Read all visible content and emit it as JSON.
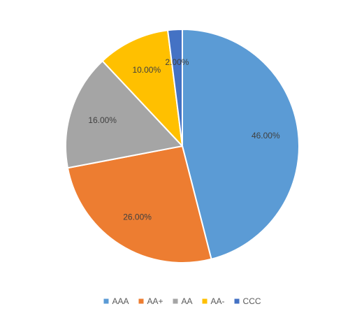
{
  "chart_data": {
    "type": "pie",
    "title": "",
    "categories": [
      "AAA",
      "AA+",
      "AA",
      "AA-",
      "CCC"
    ],
    "values": [
      46.0,
      26.0,
      16.0,
      10.0,
      2.0
    ],
    "labels": [
      "46.00%",
      "26.00%",
      "16.00%",
      "10.00%",
      "2.00%"
    ],
    "colors": [
      "#5b9bd5",
      "#ed7d31",
      "#a5a5a5",
      "#ffc000",
      "#4472c4"
    ],
    "start_angle_deg": 0,
    "direction": "clockwise",
    "legend": {
      "placement": "bottom",
      "entries": [
        "AAA",
        "AA+",
        "AA",
        "AA-",
        "CCC"
      ]
    }
  }
}
